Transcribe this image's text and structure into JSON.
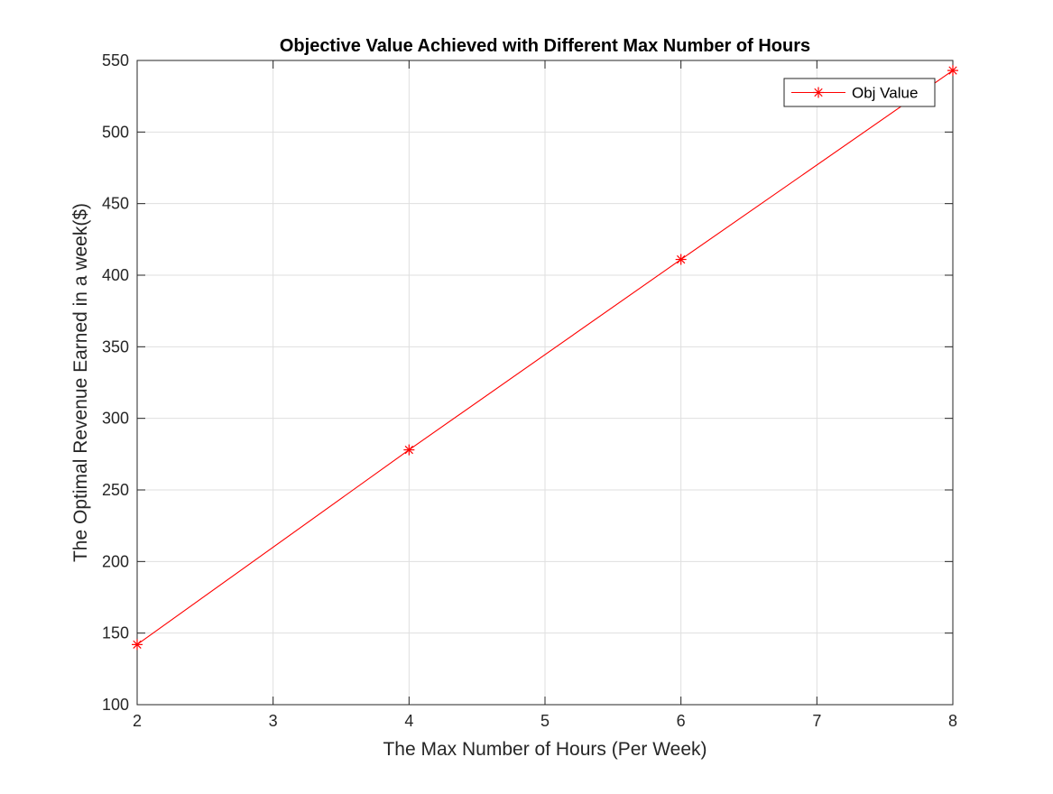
{
  "chart_data": {
    "type": "line",
    "title": "Objective Value Achieved with Different Max Number of Hours",
    "xlabel": "The Max Number of Hours (Per Week)",
    "ylabel": "The Optimal Revenue Earned in a week($)",
    "xlim": [
      2,
      8
    ],
    "ylim": [
      100,
      550
    ],
    "xticks": [
      2,
      3,
      4,
      5,
      6,
      7,
      8
    ],
    "yticks": [
      100,
      150,
      200,
      250,
      300,
      350,
      400,
      450,
      500,
      550
    ],
    "grid": true,
    "legend_position": "top-right",
    "series": [
      {
        "name": "Obj Value",
        "color": "#ff0000",
        "marker": "asterisk",
        "x": [
          2,
          4,
          6,
          8
        ],
        "y": [
          142,
          278,
          411,
          543
        ]
      }
    ]
  }
}
